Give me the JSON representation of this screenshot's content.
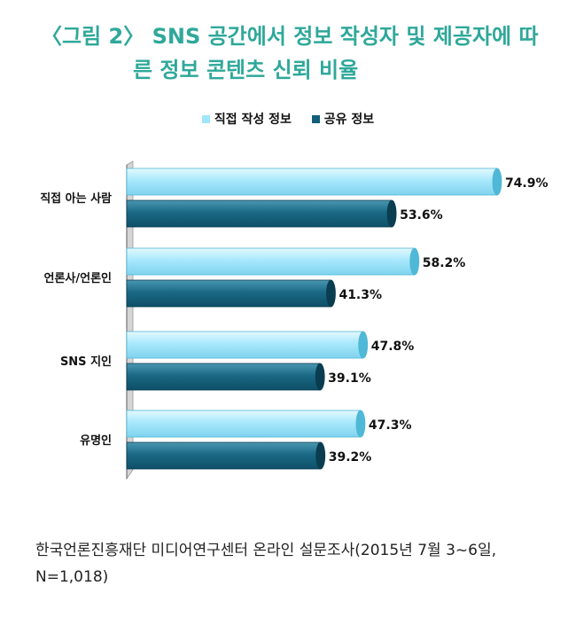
{
  "title": {
    "line1": "〈그림 2〉 SNS 공간에서 정보 작성자 및 제공자에 따",
    "line2": "른 정보 콘텐츠 신뢰 비율"
  },
  "colors": {
    "title": "#2fa89a",
    "series1": "#9fe6fb",
    "series1_dark": "#4fb8d6",
    "series2": "#135e79",
    "series2_dark": "#0a3d50"
  },
  "chart_data": {
    "type": "bar",
    "orientation": "horizontal",
    "categories": [
      "직접 아는 사람",
      "언론사/언론인",
      "SNS 지인",
      "유명인"
    ],
    "series": [
      {
        "name": "직접 작성 정보",
        "values": [
          74.9,
          58.2,
          47.8,
          47.3
        ],
        "labels": [
          "74.9%",
          "58.2%",
          "47.8%",
          "47.3%"
        ]
      },
      {
        "name": "공유 정보",
        "values": [
          53.6,
          41.3,
          39.1,
          39.2
        ],
        "labels": [
          "53.6%",
          "41.3%",
          "39.1%",
          "39.2%"
        ]
      }
    ],
    "xlim": [
      0,
      100
    ],
    "legend": "top",
    "grid": false
  },
  "source": "한국언론진흥재단 미디어연구센터 온라인 설문조사(2015년 7월 3~6일, N=1,018)"
}
